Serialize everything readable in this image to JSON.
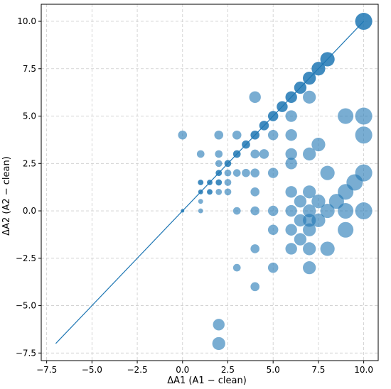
{
  "chart_data": {
    "type": "scatter",
    "xlabel": "ΔA1 (A1 − clean)",
    "ylabel": "ΔA2 (A2 − clean)",
    "xlim": [
      -7.8,
      10.8
    ],
    "ylim": [
      -7.9,
      10.9
    ],
    "x_ticks": [
      -7.5,
      -5.0,
      -2.5,
      0.0,
      2.5,
      5.0,
      7.5,
      10.0
    ],
    "y_ticks": [
      -7.5,
      -5.0,
      -2.5,
      0.0,
      2.5,
      5.0,
      7.5,
      10.0
    ],
    "x_tick_labels": [
      "−7.5",
      "−5.0",
      "−2.5",
      "0.0",
      "2.5",
      "5.0",
      "7.5",
      "10.0"
    ],
    "y_tick_labels": [
      "−7.5",
      "−5.0",
      "−2.5",
      "0.0",
      "2.5",
      "5.0",
      "7.5",
      "10.0"
    ],
    "grid": true,
    "point_color": "#1f77b4",
    "reference_line": {
      "x": [
        -7,
        10
      ],
      "y": [
        -7,
        10
      ],
      "color": "#1f77b4"
    },
    "points_on_diagonal": [
      [
        0,
        0
      ],
      [
        1,
        1
      ],
      [
        1,
        1.5
      ],
      [
        1.5,
        1.5
      ],
      [
        2,
        1.5
      ],
      [
        1.5,
        1
      ],
      [
        2,
        2
      ],
      [
        2.5,
        2.5
      ],
      [
        3,
        3
      ],
      [
        3.5,
        3.5
      ],
      [
        4,
        4
      ],
      [
        4.5,
        4.5
      ],
      [
        5,
        5
      ],
      [
        5.5,
        5.5
      ],
      [
        6,
        6
      ],
      [
        6.5,
        6.5
      ],
      [
        7,
        7
      ],
      [
        7.5,
        7.5
      ],
      [
        8,
        8
      ],
      [
        10,
        10
      ]
    ],
    "points_off_diagonal": [
      [
        0,
        4
      ],
      [
        1,
        3
      ],
      [
        1,
        0.5
      ],
      [
        1,
        0
      ],
      [
        2,
        4
      ],
      [
        2,
        3
      ],
      [
        2,
        2.5
      ],
      [
        2,
        1
      ],
      [
        2,
        -6
      ],
      [
        2,
        -7
      ],
      [
        2.5,
        2
      ],
      [
        2.5,
        1.5
      ],
      [
        2.5,
        1
      ],
      [
        3,
        4
      ],
      [
        3,
        2
      ],
      [
        3,
        0
      ],
      [
        3,
        -3
      ],
      [
        3.5,
        2
      ],
      [
        4,
        6
      ],
      [
        4,
        3
      ],
      [
        4,
        2
      ],
      [
        4,
        1
      ],
      [
        4,
        0
      ],
      [
        4,
        -2
      ],
      [
        4,
        -4
      ],
      [
        4.5,
        3
      ],
      [
        5,
        4
      ],
      [
        5,
        2
      ],
      [
        5,
        0
      ],
      [
        5,
        -1
      ],
      [
        5,
        -3
      ],
      [
        6,
        5
      ],
      [
        6,
        4
      ],
      [
        6,
        3
      ],
      [
        6,
        2.5
      ],
      [
        6,
        1
      ],
      [
        6,
        0
      ],
      [
        6,
        -1
      ],
      [
        6,
        -2
      ],
      [
        6.5,
        0.5
      ],
      [
        6.5,
        -0.5
      ],
      [
        6.5,
        -1.5
      ],
      [
        7,
        6
      ],
      [
        7,
        3
      ],
      [
        7,
        1
      ],
      [
        7,
        0
      ],
      [
        7,
        -0.5
      ],
      [
        7,
        -1
      ],
      [
        7,
        -2
      ],
      [
        7,
        -3
      ],
      [
        7.5,
        3.5
      ],
      [
        7.5,
        0.5
      ],
      [
        7.5,
        -0.5
      ],
      [
        8,
        2
      ],
      [
        8,
        0
      ],
      [
        8,
        -2
      ],
      [
        8.5,
        0.5
      ],
      [
        9,
        5
      ],
      [
        9,
        1
      ],
      [
        9,
        0
      ],
      [
        9,
        -1
      ],
      [
        9.5,
        1.5
      ],
      [
        10,
        5
      ],
      [
        10,
        4
      ],
      [
        10,
        2
      ],
      [
        10,
        0
      ]
    ]
  }
}
